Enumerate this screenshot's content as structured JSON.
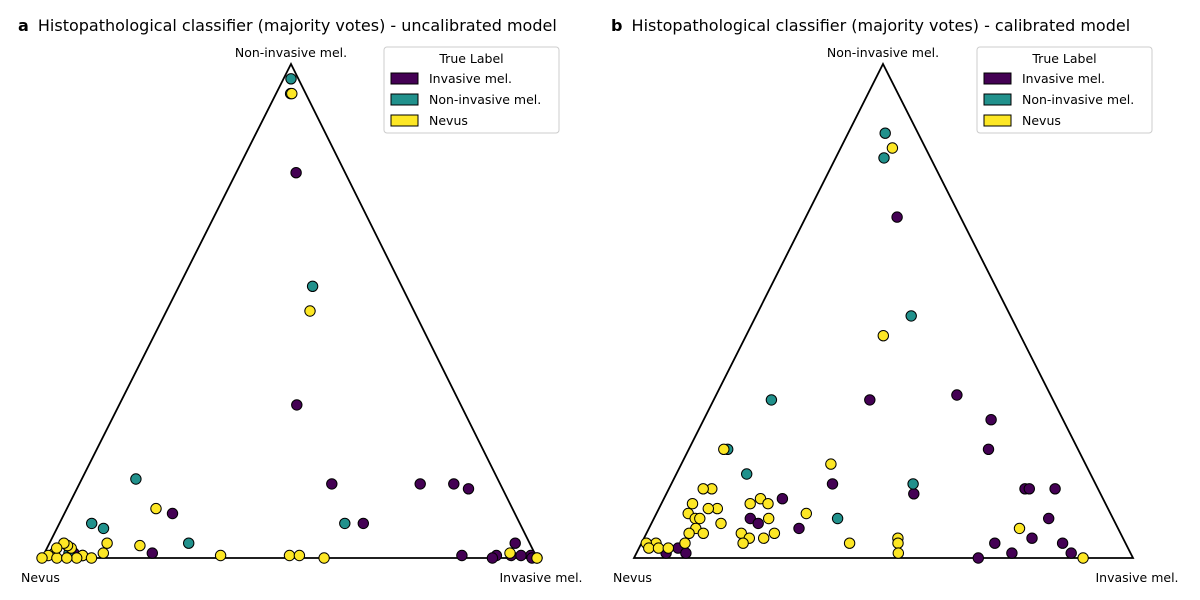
{
  "chart_data": [
    {
      "type": "scatter",
      "panel_letter": "a",
      "title": "Histopathological classifier (majority votes) - uncalibrated model",
      "vertex_labels": {
        "top": "Non-invasive mel.",
        "left": "Nevus",
        "right": "Invasive mel."
      },
      "legend": {
        "title": "True Label",
        "position": "top-right",
        "entries": [
          {
            "label": "Invasive mel.",
            "color": "#440154"
          },
          {
            "label": "Non-invasive mel.",
            "color": "#21918c"
          },
          {
            "label": "Nevus",
            "color": "#fde725"
          }
        ]
      },
      "points_note": "x = fraction toward Invasive mel. (0 = Nevus edge, 1 = Invasive mel. edge), y = Non-invasive mel. probability",
      "series": [
        {
          "name": "Invasive mel.",
          "color": "#440154",
          "points": [
            [
              0.55,
              0.78
            ],
            [
              0.52,
              0.31
            ],
            [
              0.6,
              0.15
            ],
            [
              0.81,
              0.15
            ],
            [
              0.89,
              0.15
            ],
            [
              0.92,
              0.14
            ],
            [
              0.66,
              0.07
            ],
            [
              0.24,
              0.09
            ],
            [
              0.22,
              0.01
            ],
            [
              0.06,
              0.01
            ],
            [
              0.08,
              0.005
            ],
            [
              0.85,
              0.005
            ],
            [
              0.92,
              0.005
            ],
            [
              0.95,
              0.005
            ],
            [
              0.97,
              0.03
            ],
            [
              0.99,
              0.005
            ],
            [
              0.97,
              0.005
            ],
            [
              1.0,
              0.0
            ],
            [
              0.99,
              0.0
            ],
            [
              0.91,
              0.0
            ]
          ]
        },
        {
          "name": "Non-invasive mel.",
          "color": "#21918c",
          "points": [
            [
              0.5,
              0.97
            ],
            [
              0.49,
              0.94
            ],
            [
              0.6,
              0.55
            ],
            [
              0.13,
              0.16
            ],
            [
              0.07,
              0.07
            ],
            [
              0.1,
              0.06
            ],
            [
              0.62,
              0.07
            ],
            [
              0.29,
              0.03
            ],
            [
              0.05,
              0.01
            ]
          ]
        },
        {
          "name": "Nevus",
          "color": "#fde725",
          "points": [
            [
              0.53,
              0.94
            ],
            [
              0.58,
              0.5
            ],
            [
              0.2,
              0.1
            ],
            [
              0.19,
              0.025
            ],
            [
              0.36,
              0.005
            ],
            [
              0.5,
              0.005
            ],
            [
              0.52,
              0.005
            ],
            [
              0.57,
              0.0
            ],
            [
              0.95,
              0.01
            ],
            [
              1.0,
              0.0
            ],
            [
              0.12,
              0.03
            ],
            [
              0.12,
              0.01
            ],
            [
              0.08,
              0.005
            ],
            [
              0.07,
              0.0
            ],
            [
              0.05,
              0.02
            ],
            [
              0.04,
              0.025
            ],
            [
              0.03,
              0.03
            ],
            [
              0.02,
              0.01
            ],
            [
              0.01,
              0.005
            ],
            [
              0.0,
              0.0
            ],
            [
              0.03,
              0.0
            ],
            [
              0.05,
              0.0
            ],
            [
              0.02,
              0.02
            ],
            [
              0.1,
              0.0
            ]
          ]
        }
      ]
    },
    {
      "type": "scatter",
      "panel_letter": "b",
      "title": "Histopathological classifier (majority votes) - calibrated model",
      "vertex_labels": {
        "top": "Non-invasive mel.",
        "left": "Nevus",
        "right": "Invasive mel."
      },
      "legend": {
        "title": "True Label",
        "position": "top-right",
        "entries": [
          {
            "label": "Invasive mel.",
            "color": "#440154"
          },
          {
            "label": "Non-invasive mel.",
            "color": "#21918c"
          },
          {
            "label": "Nevus",
            "color": "#fde725"
          }
        ]
      },
      "points_note": "x = fraction toward Invasive mel. (0 = Nevus edge, 1 = Invasive mel. edge), y = Non-invasive mel. probability",
      "series": [
        {
          "name": "Invasive mel.",
          "color": "#440154",
          "points": [
            [
              0.59,
              0.69
            ],
            [
              0.46,
              0.32
            ],
            [
              0.72,
              0.33
            ],
            [
              0.8,
              0.28
            ],
            [
              0.77,
              0.22
            ],
            [
              0.9,
              0.14
            ],
            [
              0.83,
              0.14
            ],
            [
              0.84,
              0.14
            ],
            [
              0.38,
              0.15
            ],
            [
              0.27,
              0.12
            ],
            [
              0.57,
              0.13
            ],
            [
              0.86,
              0.08
            ],
            [
              0.21,
              0.08
            ],
            [
              0.32,
              0.06
            ],
            [
              0.23,
              0.07
            ],
            [
              0.81,
              0.04
            ],
            [
              0.73,
              0.03
            ],
            [
              0.69,
              0.0
            ],
            [
              0.76,
              0.01
            ],
            [
              0.88,
              0.01
            ],
            [
              0.87,
              0.03
            ],
            [
              0.06,
              0.01
            ],
            [
              0.08,
              0.02
            ],
            [
              0.1,
              0.01
            ]
          ]
        },
        {
          "name": "Non-invasive mel.",
          "color": "#21918c",
          "points": [
            [
              0.53,
              0.86
            ],
            [
              0.51,
              0.81
            ],
            [
              0.61,
              0.49
            ],
            [
              0.17,
              0.32
            ],
            [
              0.1,
              0.22
            ],
            [
              0.17,
              0.17
            ],
            [
              0.57,
              0.15
            ],
            [
              0.4,
              0.08
            ]
          ]
        },
        {
          "name": "Nevus",
          "color": "#fde725",
          "points": [
            [
              0.61,
              0.83
            ],
            [
              0.5,
              0.45
            ],
            [
              0.09,
              0.22
            ],
            [
              0.37,
              0.19
            ],
            [
              0.1,
              0.14
            ],
            [
              0.08,
              0.14
            ],
            [
              0.07,
              0.11
            ],
            [
              0.13,
              0.1
            ],
            [
              0.2,
              0.11
            ],
            [
              0.22,
              0.12
            ],
            [
              0.24,
              0.11
            ],
            [
              0.25,
              0.08
            ],
            [
              0.33,
              0.09
            ],
            [
              0.07,
              0.09
            ],
            [
              0.09,
              0.08
            ],
            [
              0.11,
              0.1
            ],
            [
              0.15,
              0.07
            ],
            [
              0.1,
              0.08
            ],
            [
              0.1,
              0.06
            ],
            [
              0.12,
              0.05
            ],
            [
              0.2,
              0.05
            ],
            [
              0.22,
              0.04
            ],
            [
              0.25,
              0.04
            ],
            [
              0.27,
              0.05
            ],
            [
              0.09,
              0.05
            ],
            [
              0.09,
              0.03
            ],
            [
              0.03,
              0.03
            ],
            [
              0.01,
              0.03
            ],
            [
              0.02,
              0.02
            ],
            [
              0.04,
              0.02
            ],
            [
              0.06,
              0.02
            ],
            [
              0.21,
              0.03
            ],
            [
              0.43,
              0.03
            ],
            [
              0.53,
              0.04
            ],
            [
              0.53,
              0.03
            ],
            [
              0.53,
              0.01
            ],
            [
              0.79,
              0.06
            ],
            [
              0.9,
              0.0
            ]
          ]
        }
      ]
    }
  ]
}
